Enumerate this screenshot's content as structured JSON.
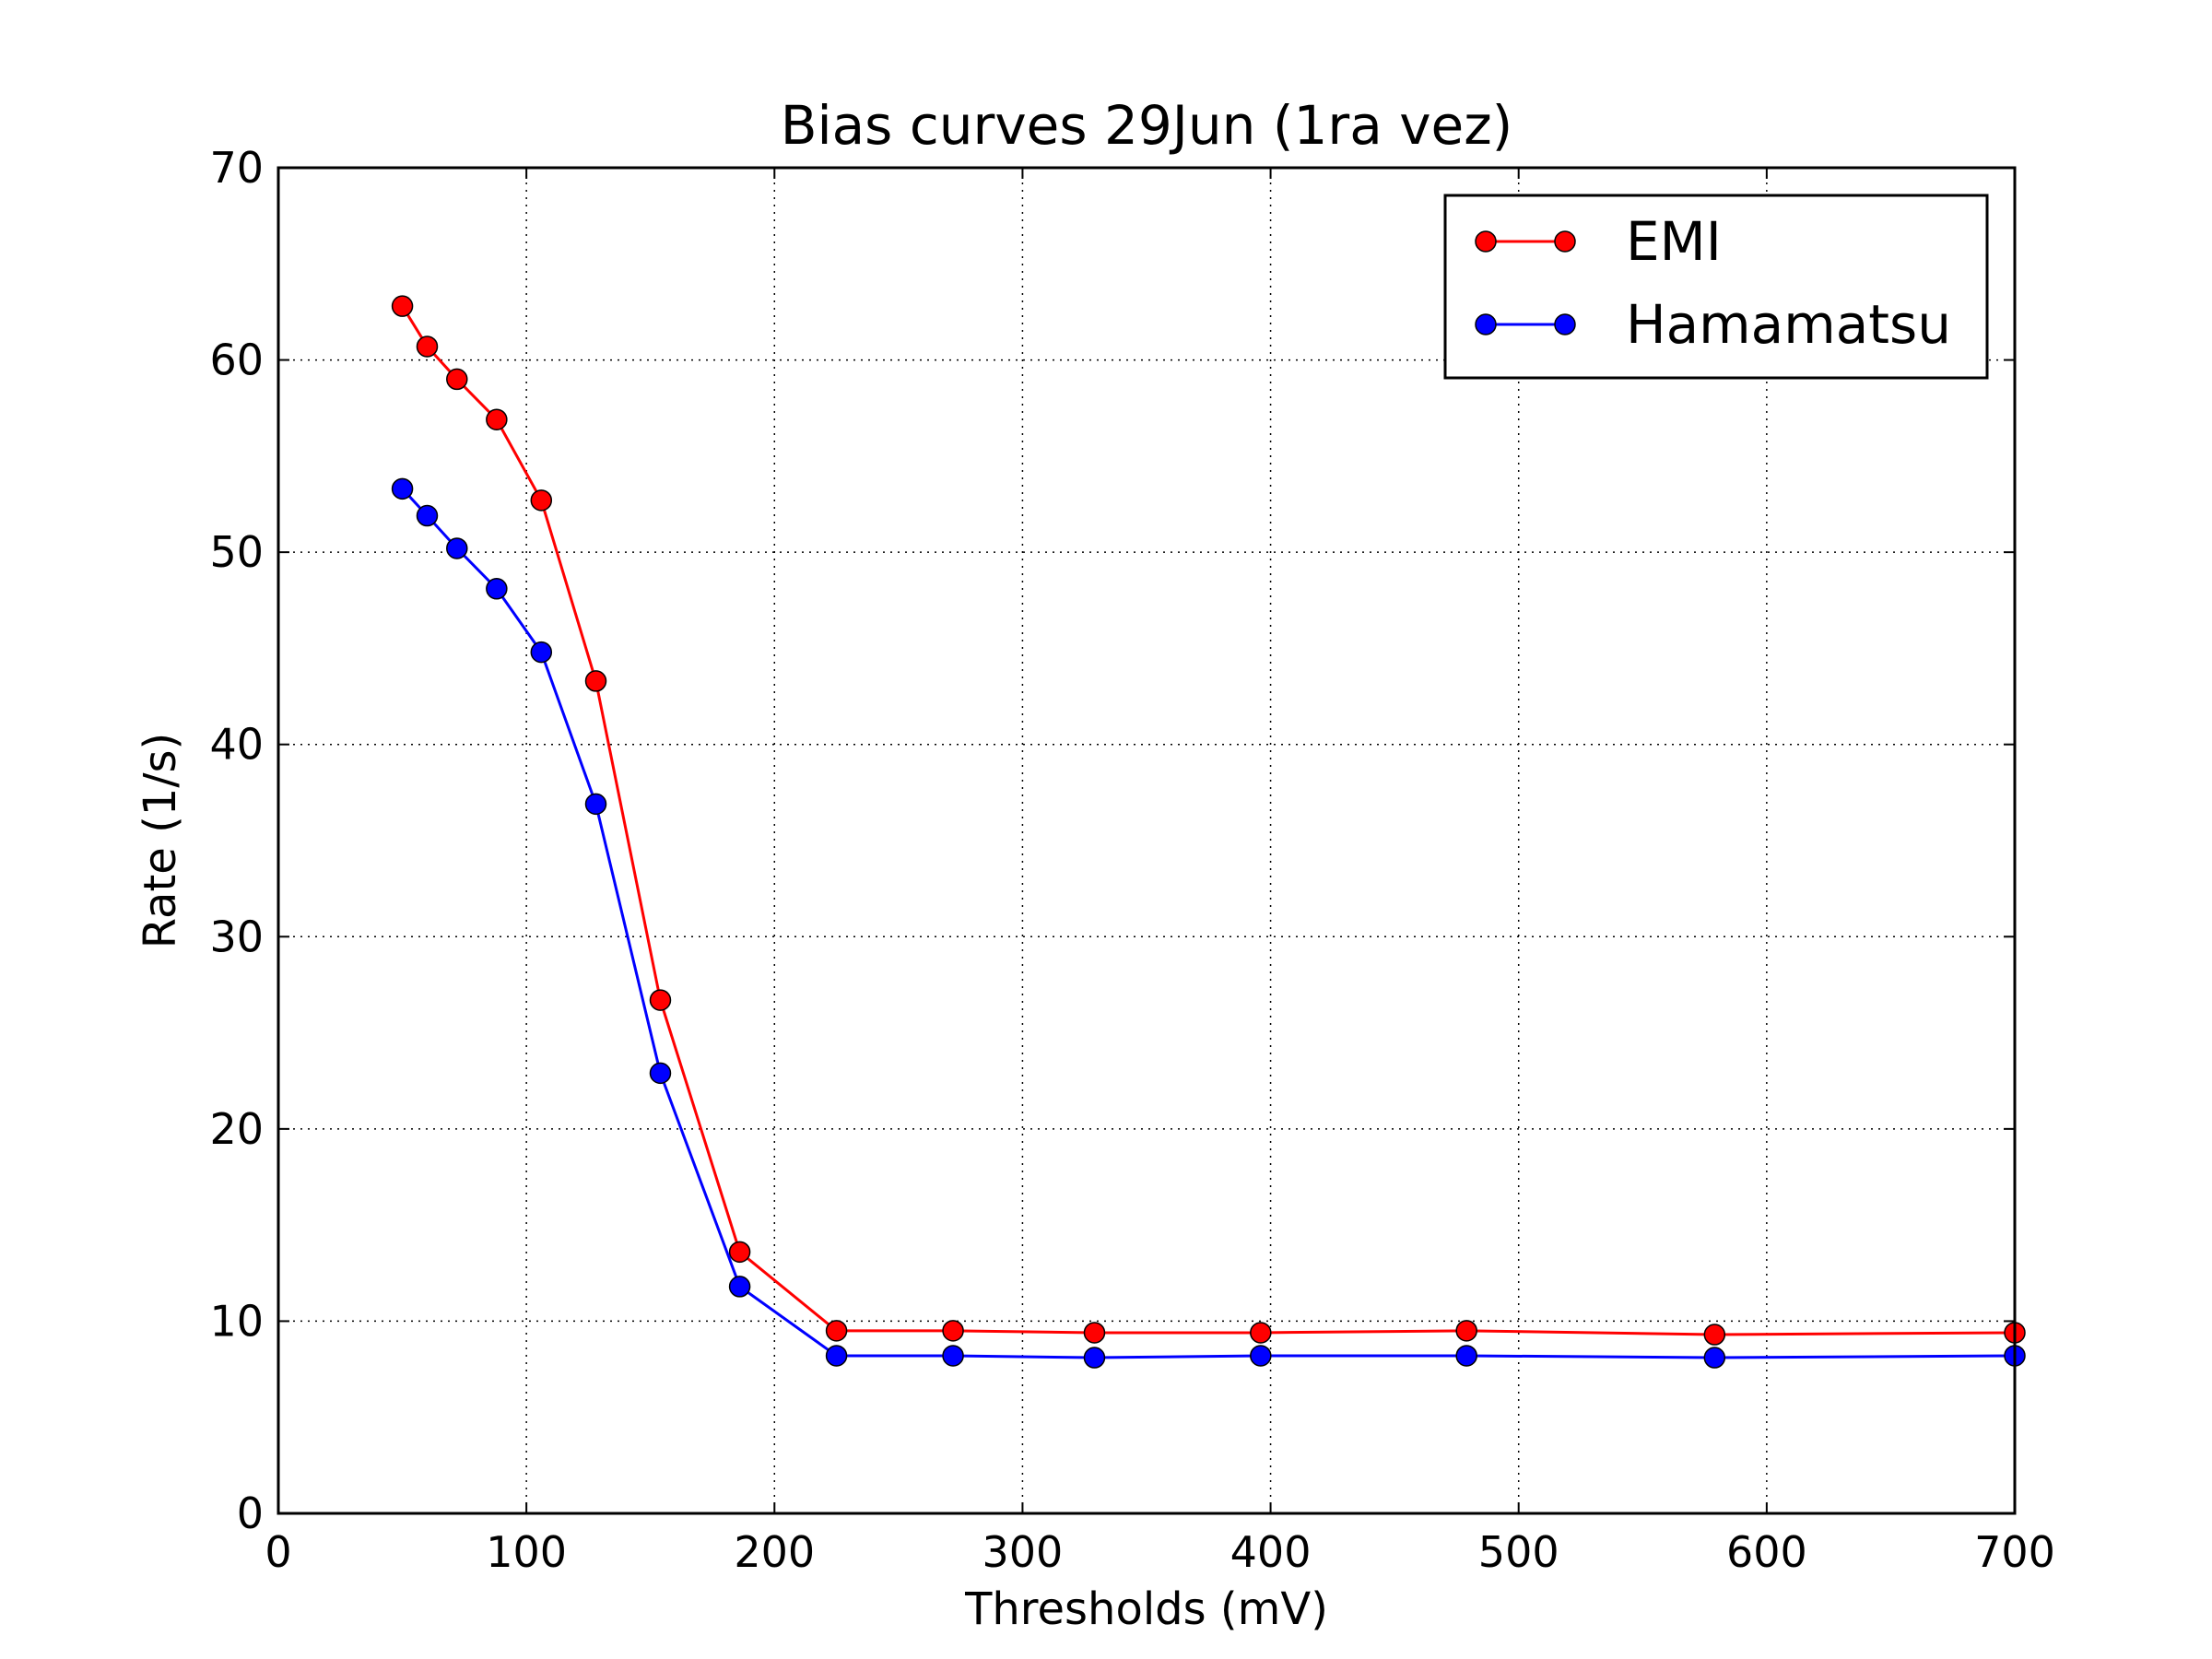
{
  "chart_data": {
    "type": "line",
    "title": "Bias curves 29Jun (1ra vez)",
    "xlabel": "Thresholds (mV)",
    "ylabel": "Rate (1/s)",
    "xlim": [
      0,
      700
    ],
    "ylim": [
      0,
      70
    ],
    "xticks": [
      "0",
      "100",
      "200",
      "300",
      "400",
      "500",
      "600",
      "700"
    ],
    "yticks": [
      "0",
      "10",
      "20",
      "30",
      "40",
      "50",
      "60",
      "70"
    ],
    "grid": true,
    "grid_style": "dotted",
    "legend_position": "upper right",
    "series": [
      {
        "name": "EMI",
        "color": "#ff0000",
        "marker": "circle",
        "x": [
          50,
          60,
          72,
          88,
          106,
          128,
          154,
          186,
          225,
          272,
          329,
          396,
          479,
          579,
          700
        ],
        "y": [
          62.8,
          60.7,
          59.0,
          56.9,
          52.7,
          43.3,
          26.7,
          13.6,
          9.5,
          9.5,
          9.4,
          9.4,
          9.5,
          9.3,
          9.4
        ]
      },
      {
        "name": "Hamamatsu",
        "color": "#0000ff",
        "marker": "circle",
        "x": [
          50,
          60,
          72,
          88,
          106,
          128,
          154,
          186,
          225,
          272,
          329,
          396,
          479,
          579,
          700
        ],
        "y": [
          53.3,
          51.9,
          50.2,
          48.1,
          44.8,
          36.9,
          22.9,
          11.8,
          8.2,
          8.2,
          8.1,
          8.2,
          8.2,
          8.1,
          8.2
        ]
      }
    ]
  }
}
